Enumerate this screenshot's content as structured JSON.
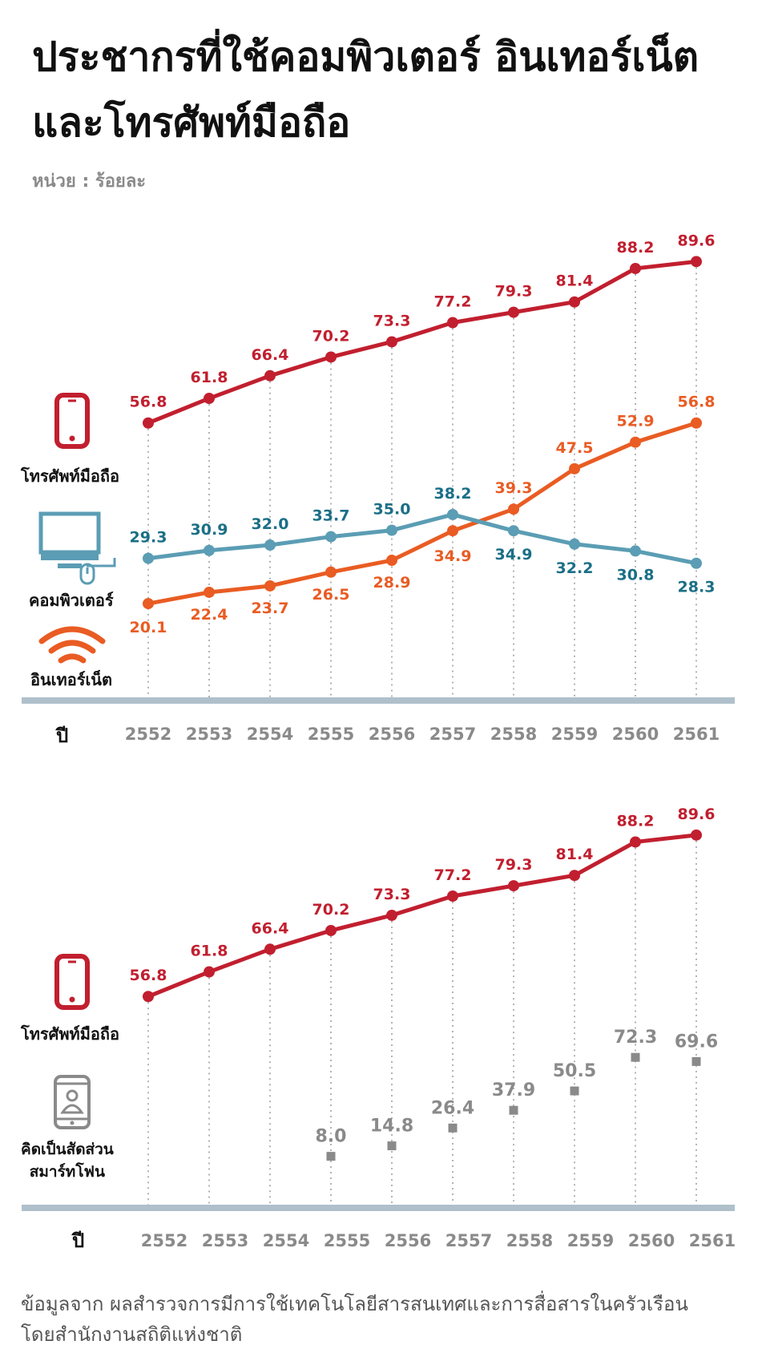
{
  "title": {
    "line1": "ประชากรที่ใช้คอมพิวเตอร์ อินเทอร์เน็ต",
    "line2": "และโทรศัพท์มือถือ"
  },
  "unit": "หน่วย : ร้อยละ",
  "footer": {
    "line1": "ข้อมูลจาก  ผลสำรวจการมีการใช้เทคโนโลยีสารสนเทศและการสื่อสารในครัวเรือน",
    "line2": "โดยสำนักงานสถิติแห่งชาติ"
  },
  "colors": {
    "mobile": "#C11F2F",
    "internet": "#E95C23",
    "computer": "#5B9DB4",
    "computer_label": "#1A6F86",
    "smartphone": "#8A8A8A",
    "axis": "#AFC0CB"
  },
  "chart_data": [
    {
      "type": "line",
      "x_label": "ปี",
      "categories": [
        "2552",
        "2553",
        "2554",
        "2555",
        "2556",
        "2557",
        "2558",
        "2559",
        "2560",
        "2561"
      ],
      "ylim": [
        0,
        100
      ],
      "legend_placement": "left",
      "series": [
        {
          "name": "โทรศัพท์มือถือ",
          "icon": "mobile-phone-icon",
          "color": "#C11F2F",
          "values": [
            56.8,
            61.8,
            66.4,
            70.2,
            73.3,
            77.2,
            79.3,
            81.4,
            88.2,
            89.6
          ]
        },
        {
          "name": "คอมพิวเตอร์",
          "icon": "computer-icon",
          "color": "#5B9DB4",
          "values": [
            29.3,
            30.9,
            32.0,
            33.7,
            35.0,
            38.2,
            34.9,
            32.2,
            30.8,
            28.3
          ]
        },
        {
          "name": "อินเทอร์เน็ต",
          "icon": "wifi-icon",
          "color": "#E95C23",
          "values": [
            20.1,
            22.4,
            23.7,
            26.5,
            28.9,
            34.9,
            39.3,
            47.5,
            52.9,
            56.8
          ]
        }
      ]
    },
    {
      "type": "line",
      "x_label": "ปี",
      "categories": [
        "2552",
        "2553",
        "2554",
        "2555",
        "2556",
        "2557",
        "2558",
        "2559",
        "2560",
        "2561"
      ],
      "ylim": [
        0,
        100
      ],
      "legend_placement": "left",
      "series": [
        {
          "name": "โทรศัพท์มือถือ",
          "icon": "mobile-phone-icon",
          "color": "#C11F2F",
          "values": [
            56.8,
            61.8,
            66.4,
            70.2,
            73.3,
            77.2,
            79.3,
            81.4,
            88.2,
            89.6
          ]
        },
        {
          "name": "คิดเป็นสัดส่วนสมาร์ทโฟน",
          "name_lines": [
            "คิดเป็นสัดส่วน",
            "สมาร์ทโฟน"
          ],
          "icon": "smartphone-user-icon",
          "color": "#8A8A8A",
          "marker": "square",
          "values": [
            null,
            null,
            null,
            8.0,
            14.8,
            26.4,
            37.9,
            50.5,
            72.3,
            69.6
          ]
        }
      ]
    }
  ]
}
